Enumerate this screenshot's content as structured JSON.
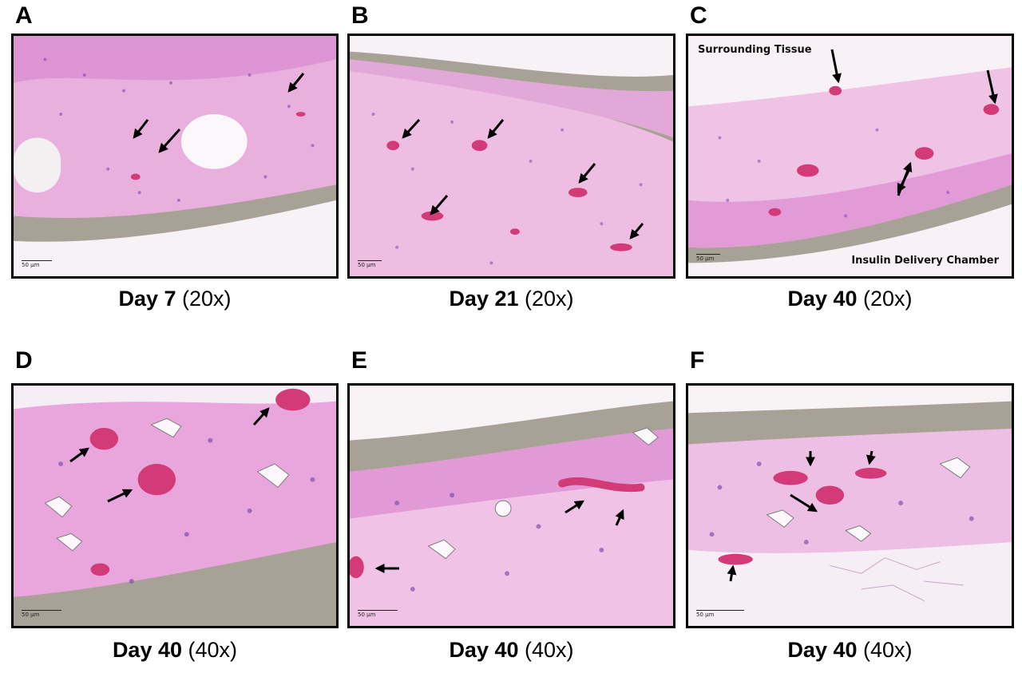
{
  "panels": [
    {
      "letter": "A",
      "day_label": "Day 7",
      "magnification": "(20x)",
      "scale": "50 µm"
    },
    {
      "letter": "B",
      "day_label": "Day 21",
      "magnification": "(20x)",
      "scale": "50 µm"
    },
    {
      "letter": "C",
      "day_label": "Day 40",
      "magnification": "(20x)",
      "scale": "50 µm",
      "annotation_top": "Surrounding Tissue",
      "annotation_bottom": "Insulin Delivery Chamber"
    },
    {
      "letter": "D",
      "day_label": "Day 40",
      "magnification": "(40x)",
      "scale": "50 µm"
    },
    {
      "letter": "E",
      "day_label": "Day 40",
      "magnification": "(40x)",
      "scale": "50 µm"
    },
    {
      "letter": "F",
      "day_label": "Day 40",
      "magnification": "(40x)",
      "scale": "50 µm"
    }
  ],
  "colors": {
    "tissue": "#e7a9dc",
    "tissue_light": "#f3d6ef",
    "vessel": "#d23a78",
    "nuclei": "#7b4aa8",
    "membrane": "#a8a296",
    "background": "#f6f2f4",
    "arrow": "#000000"
  }
}
